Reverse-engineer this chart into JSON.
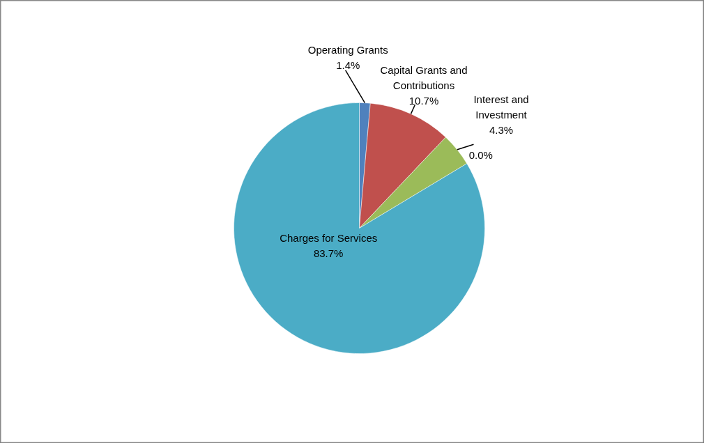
{
  "chart_data": {
    "type": "pie",
    "categories": [
      "Operating Grants",
      "Capital Grants and Contributions",
      "Interest and Investment",
      null,
      "Charges for Services"
    ],
    "values": [
      1.4,
      10.7,
      4.3,
      0.0,
      83.7
    ],
    "colors": [
      "#4f81bd",
      "#c0504d",
      "#9bbb59",
      "#8064a2",
      "#4bacc6"
    ],
    "value_labels": [
      "1.4%",
      "10.7%",
      "4.3%",
      "0.0%",
      "83.7%"
    ]
  }
}
